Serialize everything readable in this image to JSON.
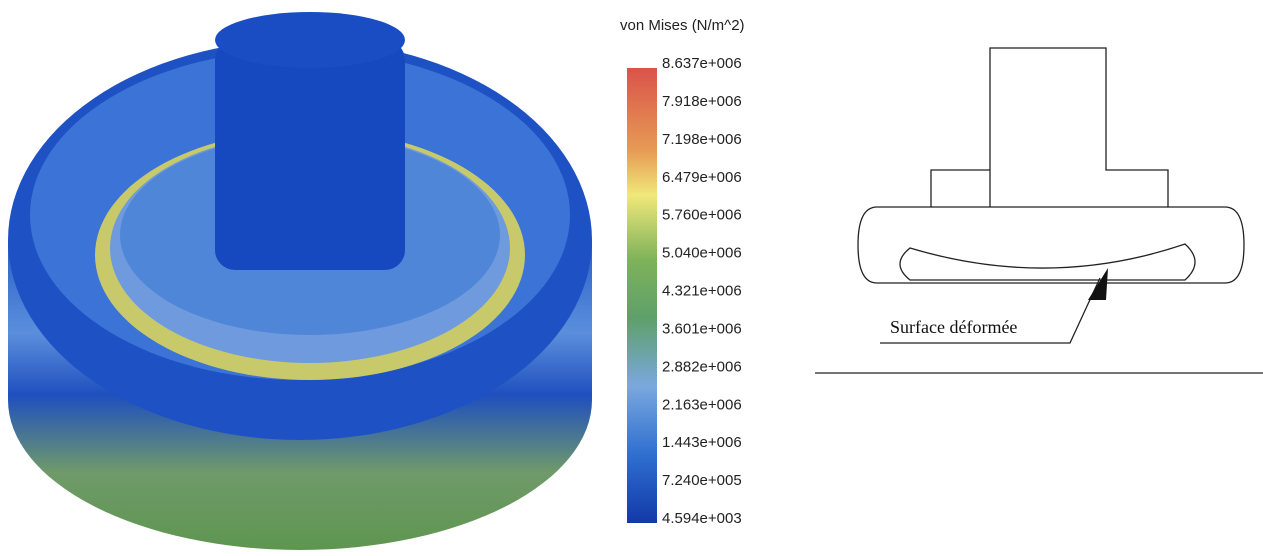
{
  "legend": {
    "title": "von Mises (N/m^2)",
    "ticks": [
      "8.637e+006",
      "7.918e+006",
      "7.198e+006",
      "6.479e+006",
      "5.760e+006",
      "5.040e+006",
      "4.321e+006",
      "3.601e+006",
      "2.882e+006",
      "2.163e+006",
      "1.443e+006",
      "7.240e+005",
      "4.594e+003"
    ]
  },
  "diagram": {
    "annotation": "Surface déformée"
  }
}
